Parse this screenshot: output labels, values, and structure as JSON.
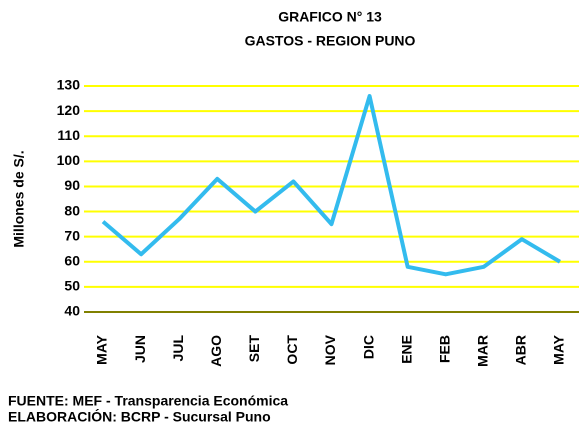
{
  "chart_data": {
    "type": "line",
    "title": "GRAFICO N° 13",
    "subtitle": "GASTOS - REGION PUNO",
    "y_label": "Millones de S/.",
    "categories": [
      "MAY",
      "JUN",
      "JUL",
      "AGO",
      "SET",
      "OCT",
      "NOV",
      "DIC",
      "ENE",
      "FEB",
      "MAR",
      "ABR",
      "MAY"
    ],
    "values": [
      76,
      63,
      77,
      93,
      80,
      92,
      75,
      126,
      58,
      55,
      58,
      69,
      60
    ],
    "color": "#33bbee",
    "grid_color": "#ffff00",
    "ylim": [
      40,
      130
    ],
    "yticks": [
      40,
      50,
      60,
      70,
      80,
      90,
      100,
      110,
      120,
      130
    ],
    "grid": true,
    "notes": [
      "FUENTE: MEF - Transparencia Económica",
      "ELABORACIÓN: BCRP - Sucursal Puno"
    ]
  }
}
